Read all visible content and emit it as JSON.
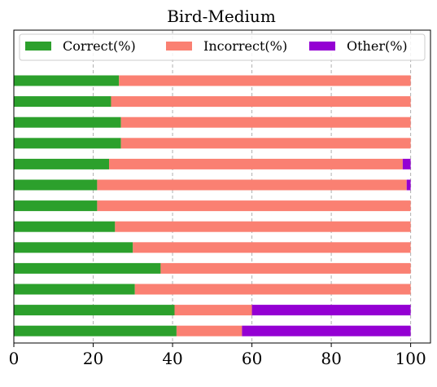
{
  "chart_data": {
    "type": "bar",
    "orientation": "horizontal",
    "stacked": true,
    "title": "Bird-Medium",
    "xlabel": "",
    "ylabel": "",
    "xlim": [
      0,
      105
    ],
    "xticks": [
      0,
      20,
      40,
      60,
      80,
      100
    ],
    "grid": "vertical-dashed",
    "legend_position": "top",
    "series": [
      {
        "name": "Correct(%)",
        "color": "#2ca02c",
        "values": [
          26.5,
          24.5,
          27,
          27,
          24,
          21,
          21,
          25.5,
          30,
          37,
          30.5,
          40.5,
          41
        ]
      },
      {
        "name": "Incorrect(%)",
        "color": "#fa8072",
        "values": [
          73.5,
          75.5,
          73,
          73,
          74,
          78,
          79,
          74.5,
          70,
          63,
          69.5,
          19.5,
          16.5
        ]
      },
      {
        "name": "Other(%)",
        "color": "#9400d3",
        "values": [
          0,
          0,
          0,
          0,
          2,
          1,
          0,
          0,
          0,
          0,
          0,
          40,
          42.5
        ]
      }
    ]
  }
}
